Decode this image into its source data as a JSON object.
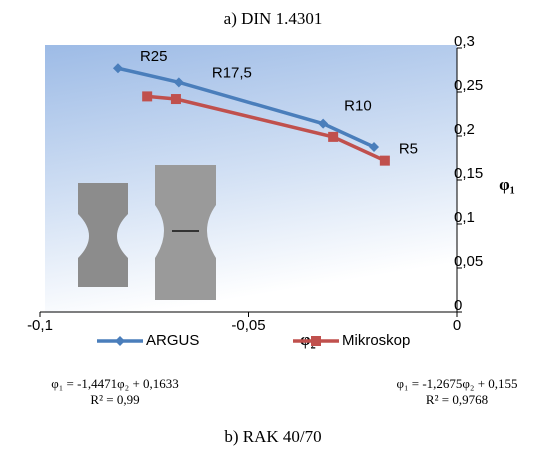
{
  "chart_data": {
    "type": "line",
    "title": "a) DIN 1.4301",
    "caption": "b) RAK 40/70",
    "x_label": "-φ₂",
    "y_label": "φ₁",
    "xlim": [
      -0.1,
      0
    ],
    "ylim": [
      0,
      0.3
    ],
    "xticks": [
      {
        "value": -0.1,
        "label": "-0,1"
      },
      {
        "value": -0.05,
        "label": "-0,05"
      },
      0
    ],
    "yticks": [
      0,
      {
        "value": 0.05,
        "label": "0,05"
      },
      {
        "value": 0.1,
        "label": "0,1"
      },
      {
        "value": 0.15,
        "label": "0,15"
      },
      {
        "value": 0.2,
        "label": "0,2"
      },
      {
        "value": 0.25,
        "label": "0,25"
      },
      {
        "value": 0.3,
        "label": "0,3"
      }
    ],
    "series": [
      {
        "name": "ARGUS",
        "color": "#4a7ebb",
        "marker": "diamond",
        "x": [
          -0.0813,
          -0.0667,
          -0.0321,
          -0.0199
        ],
        "values": [
          0.277,
          0.261,
          0.214,
          0.1875
        ]
      },
      {
        "name": "Mikroskop",
        "color": "#c0504d",
        "marker": "square",
        "x": [
          -0.0743,
          -0.0674,
          -0.0297,
          -0.0173
        ],
        "values": [
          0.245,
          0.242,
          0.199,
          0.172
        ]
      }
    ],
    "annotations": [
      {
        "text": "R25",
        "x": -0.0813,
        "y": 0.277
      },
      {
        "text": "R17,5",
        "x": -0.0667,
        "y": 0.261
      },
      {
        "text": "R10",
        "x": -0.0321,
        "y": 0.214
      },
      {
        "text": "R5",
        "x": -0.0173,
        "y": 0.172
      }
    ],
    "equations": [
      {
        "formula": "φ₁ = -1,4471φ₂ + 0,1633",
        "r2": "R² = 0,99"
      },
      {
        "formula": "φ₁ = -1,2675φ₂ + 0,155",
        "r2": "R² = 0,9768"
      }
    ]
  }
}
